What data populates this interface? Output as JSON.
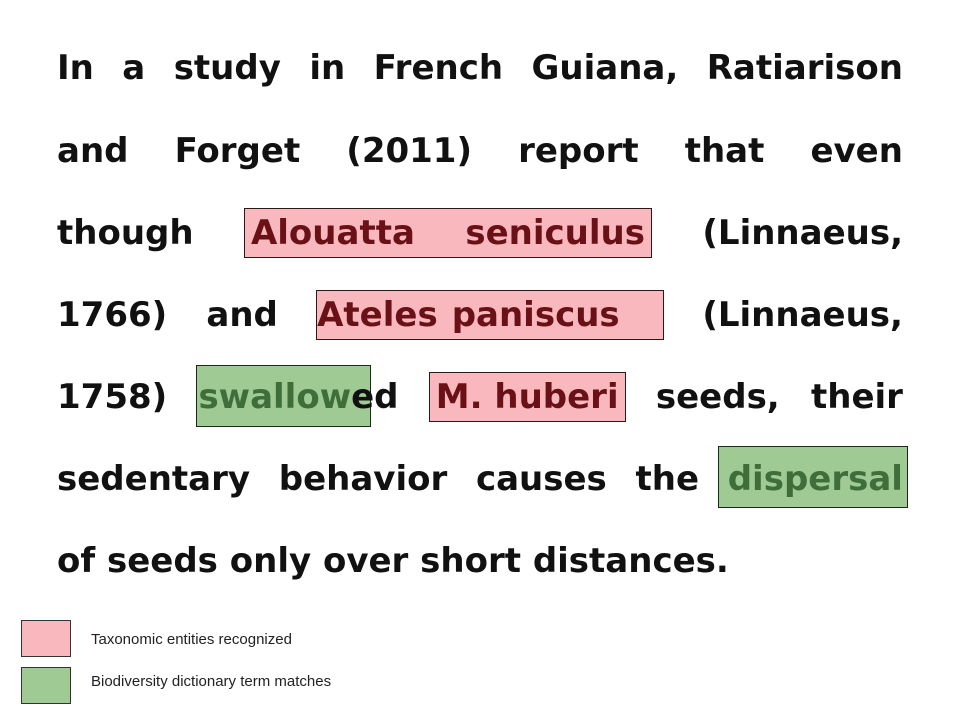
{
  "paragraph": {
    "line1": [
      "In",
      "a",
      "study",
      "in",
      "French",
      "Guiana,",
      "Ratiarison"
    ],
    "line2": [
      "and",
      "Forget",
      "(2011)",
      "report",
      "that",
      "even"
    ],
    "line3": {
      "pre": "though",
      "taxon": [
        "Alouatta",
        "seniculus"
      ],
      "post": "(Linnaeus,"
    },
    "line4": {
      "pre1": "1766)",
      "pre2": "and",
      "taxon": [
        "Ateles",
        "paniscus"
      ],
      "post": "(Linnaeus,"
    },
    "line5": {
      "pre": "1758)",
      "bio_highlight": "swallow",
      "bio_rest": "ed",
      "taxon": [
        "M.",
        "huberi"
      ],
      "post1": "seeds,",
      "post2": "their"
    },
    "line6": {
      "words": [
        "sedentary",
        "behavior",
        "causes",
        "the"
      ],
      "bio": "dispersal"
    },
    "line7": "of seeds only over short distances."
  },
  "legend": {
    "taxonomic_label": "Taxonomic entities recognized",
    "biodiversity_label": "Biodiversity dictionary term matches",
    "taxonomic_color": "#f9b8bd",
    "biodiversity_color": "#9fca94"
  }
}
